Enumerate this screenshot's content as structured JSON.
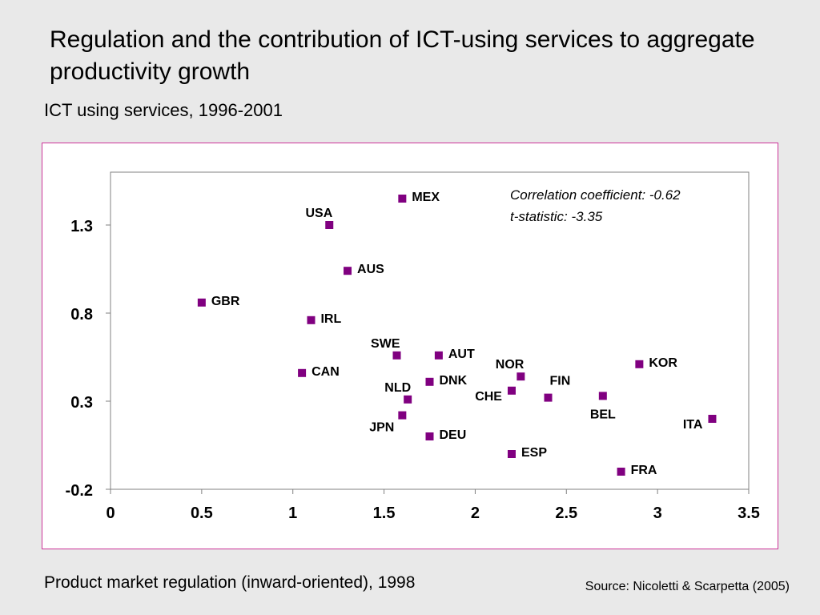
{
  "page": {
    "title": "Regulation and the contribution of ICT-using services to aggregate productivity growth",
    "subtitle": "ICT using services, 1996-2001",
    "source": "Source: Nicoletti & Scarpetta (2005)"
  },
  "chart_data": {
    "type": "scatter",
    "title": "",
    "xlabel": "Product market regulation (inward-oriented), 1998",
    "ylabel": "",
    "xlim": [
      0,
      3.5
    ],
    "ylim": [
      -0.2,
      1.6
    ],
    "x_ticks": [
      0,
      0.5,
      1,
      1.5,
      2,
      2.5,
      3,
      3.5
    ],
    "x_tick_labels": [
      "0",
      "0.5",
      "1",
      "1.5",
      "2",
      "2.5",
      "3",
      "3.5"
    ],
    "y_ticks": [
      -0.2,
      0.3,
      0.8,
      1.3
    ],
    "y_tick_labels": [
      "-0.2",
      "0.3",
      "0.8",
      "1.3"
    ],
    "grid": false,
    "marker_color": "#800080",
    "annotations": [
      "Correlation coefficient: -0.62",
      "t-statistic: -3.35"
    ],
    "points": [
      {
        "label": "MEX",
        "x": 1.6,
        "y": 1.45,
        "label_pos": "right"
      },
      {
        "label": "USA",
        "x": 1.2,
        "y": 1.3,
        "label_pos": "above-left"
      },
      {
        "label": "AUS",
        "x": 1.3,
        "y": 1.04,
        "label_pos": "right"
      },
      {
        "label": "GBR",
        "x": 0.5,
        "y": 0.86,
        "label_pos": "right"
      },
      {
        "label": "IRL",
        "x": 1.1,
        "y": 0.76,
        "label_pos": "right"
      },
      {
        "label": "SWE",
        "x": 1.57,
        "y": 0.56,
        "label_pos": "above-left"
      },
      {
        "label": "AUT",
        "x": 1.8,
        "y": 0.56,
        "label_pos": "right"
      },
      {
        "label": "CAN",
        "x": 1.05,
        "y": 0.46,
        "label_pos": "right"
      },
      {
        "label": "DNK",
        "x": 1.75,
        "y": 0.41,
        "label_pos": "right"
      },
      {
        "label": "NOR",
        "x": 2.25,
        "y": 0.44,
        "label_pos": "above-left"
      },
      {
        "label": "FIN",
        "x": 2.4,
        "y": 0.32,
        "label_pos": "above-right"
      },
      {
        "label": "CHE",
        "x": 2.2,
        "y": 0.36,
        "label_pos": "left"
      },
      {
        "label": "NLD",
        "x": 1.63,
        "y": 0.31,
        "label_pos": "above-left"
      },
      {
        "label": "KOR",
        "x": 2.9,
        "y": 0.51,
        "label_pos": "right"
      },
      {
        "label": "BEL",
        "x": 2.7,
        "y": 0.33,
        "label_pos": "below"
      },
      {
        "label": "ITA",
        "x": 3.3,
        "y": 0.2,
        "label_pos": "left"
      },
      {
        "label": "JPN",
        "x": 1.6,
        "y": 0.22,
        "label_pos": "below-left"
      },
      {
        "label": "DEU",
        "x": 1.75,
        "y": 0.1,
        "label_pos": "right"
      },
      {
        "label": "ESP",
        "x": 2.2,
        "y": 0.0,
        "label_pos": "right"
      },
      {
        "label": "FRA",
        "x": 2.8,
        "y": -0.1,
        "label_pos": "right"
      }
    ]
  }
}
